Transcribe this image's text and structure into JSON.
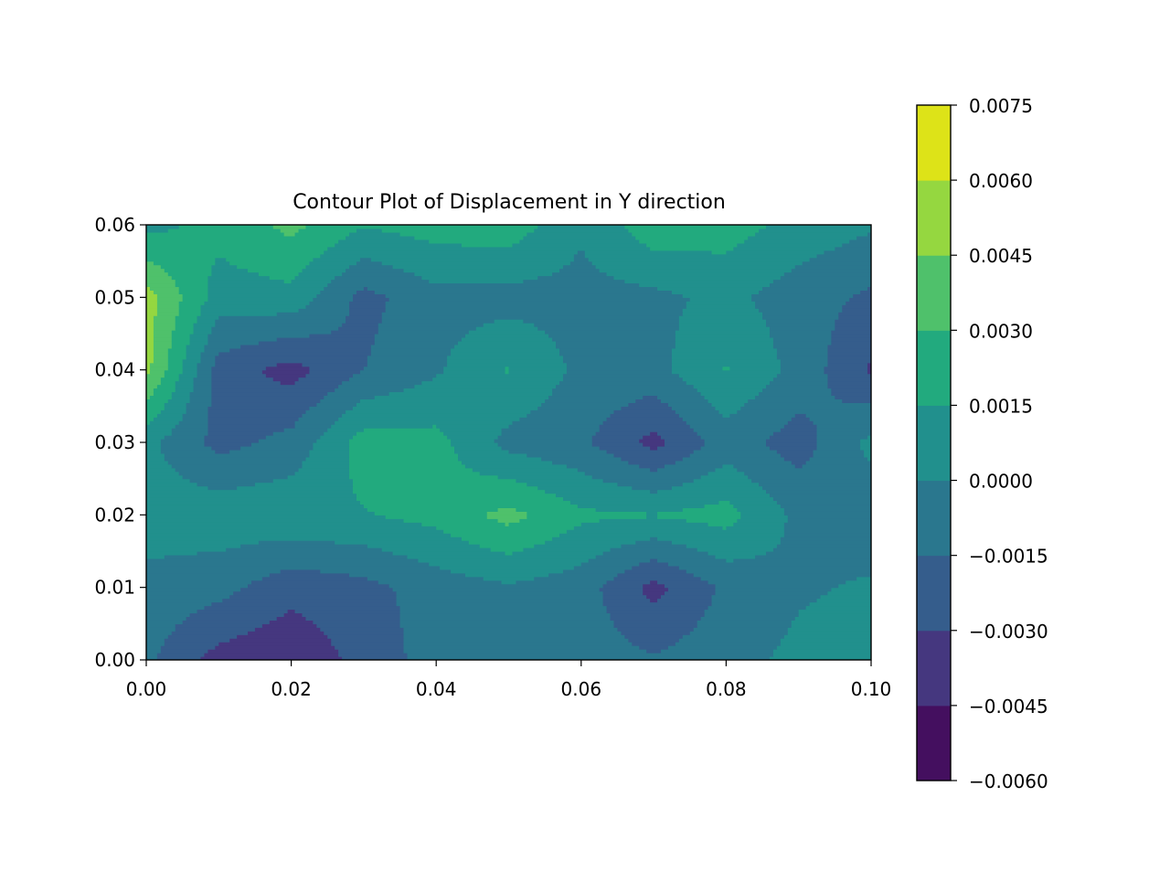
{
  "chart_data": {
    "type": "heatmap",
    "subtype": "filled-contour",
    "title": "Contour Plot of Displacement in Y direction",
    "xlabel": "",
    "ylabel": "",
    "xlim": [
      0.0,
      0.1
    ],
    "ylim": [
      0.0,
      0.06
    ],
    "x_ticks": [
      "0.00",
      "0.02",
      "0.04",
      "0.06",
      "0.08",
      "0.10"
    ],
    "y_ticks": [
      "0.00",
      "0.01",
      "0.02",
      "0.03",
      "0.04",
      "0.05",
      "0.06"
    ],
    "grid": false,
    "colormap": "viridis",
    "colorbar": {
      "levels": [
        -0.006,
        -0.0045,
        -0.003,
        -0.0015,
        0.0,
        0.0015,
        0.003,
        0.0045,
        0.006,
        0.0075
      ],
      "tick_labels": [
        "−0.0060",
        "−0.0045",
        "−0.0030",
        "−0.0015",
        "0.0000",
        "0.0015",
        "0.0030",
        "0.0045",
        "0.0060",
        "0.0075"
      ],
      "band_colors": [
        "#440f5f",
        "#45377f",
        "#355d8c",
        "#2a778e",
        "#21908d",
        "#22aa7e",
        "#4fc16b",
        "#95d740",
        "#dde318"
      ]
    },
    "x": [
      0.0,
      0.01,
      0.02,
      0.03,
      0.04,
      0.05,
      0.06,
      0.07,
      0.08,
      0.09,
      0.1
    ],
    "y": [
      0.0,
      0.01,
      0.02,
      0.03,
      0.04,
      0.05,
      0.06
    ],
    "z": [
      [
        -0.0012,
        -0.0036,
        -0.0042,
        -0.0025,
        -0.0008,
        -0.0003,
        -0.0007,
        -0.0013,
        -0.0006,
        0.0004,
        0.0008
      ],
      [
        -0.0005,
        -0.001,
        -0.0025,
        -0.002,
        -0.0008,
        -0.0002,
        -0.0008,
        -0.0035,
        -0.0012,
        -0.0002,
        0.0002
      ],
      [
        0.0008,
        0.001,
        0.0012,
        0.0014,
        0.002,
        0.0035,
        0.0018,
        0.0016,
        0.0021,
        -0.0004,
        -0.001
      ],
      [
        0.0004,
        -0.002,
        -0.001,
        0.0022,
        0.002,
        -0.0005,
        -0.0012,
        -0.0035,
        -0.0008,
        -0.0022,
        0.0004
      ],
      [
        0.005,
        -0.0022,
        -0.0036,
        -0.0015,
        -0.0002,
        0.0016,
        -0.0004,
        -0.0005,
        0.0016,
        -0.0005,
        -0.0032
      ],
      [
        0.0052,
        0.0008,
        0.001,
        -0.002,
        -0.0005,
        -0.0006,
        -0.0005,
        -0.0004,
        0.0004,
        -0.0008,
        -0.0018
      ],
      [
        0.001,
        0.002,
        0.0034,
        0.0016,
        0.0022,
        0.0024,
        0.0002,
        0.0025,
        0.0022,
        0.001,
        0.0002
      ]
    ]
  }
}
